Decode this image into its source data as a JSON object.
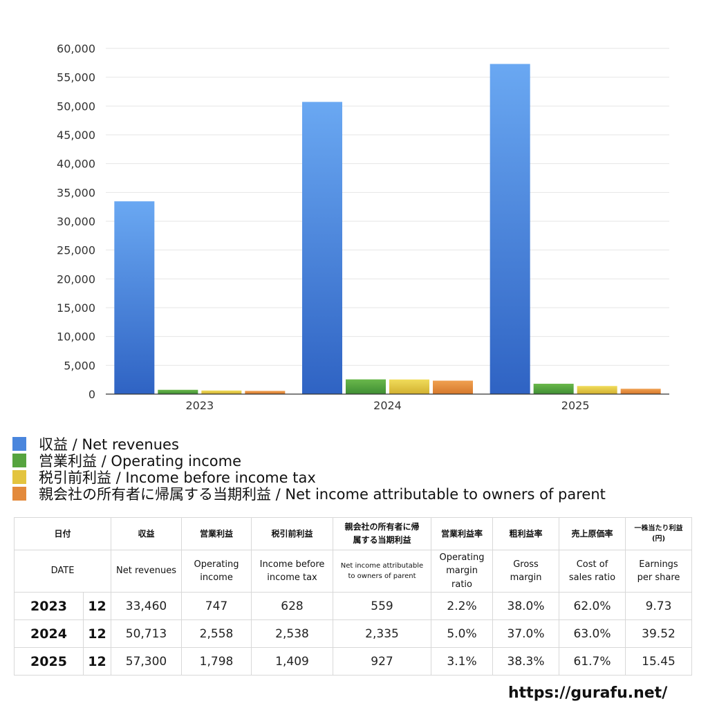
{
  "chart_data": {
    "type": "bar",
    "categories": [
      "2023",
      "2024",
      "2025"
    ],
    "series": [
      {
        "name": "収益 / Net revenues",
        "values": [
          33460,
          50713,
          57300
        ]
      },
      {
        "name": "営業利益 / Operating income",
        "values": [
          747,
          2558,
          1798
        ]
      },
      {
        "name": "税引前利益 / Income before income tax",
        "values": [
          628,
          2538,
          1409
        ]
      },
      {
        "name": "親会社の所有者に帰属する当期利益 / Net income attributable to owners of parent",
        "values": [
          559,
          2335,
          927
        ]
      }
    ],
    "ylim": [
      0,
      60000
    ],
    "yticks": [
      0,
      5000,
      10000,
      15000,
      20000,
      25000,
      30000,
      35000,
      40000,
      45000,
      50000,
      55000,
      60000
    ],
    "ytick_labels": [
      "0",
      "5,000",
      "10,000",
      "15,000",
      "20,000",
      "25,000",
      "30,000",
      "35,000",
      "40,000",
      "45,000",
      "50,000",
      "55,000",
      "60,000"
    ],
    "grid": true,
    "legend_position": "bottom",
    "colors": [
      {
        "light": "#6aa8f2",
        "dark": "#2f63c3"
      },
      {
        "light": "#6ab84b",
        "dark": "#3f8e34"
      },
      {
        "light": "#f0dc5a",
        "dark": "#d2b030"
      },
      {
        "light": "#f0a050",
        "dark": "#d6782c"
      }
    ]
  },
  "legend": {
    "items": [
      {
        "label": "収益 / Net revenues",
        "color": "#4a86dd"
      },
      {
        "label": "営業利益 / Operating income",
        "color": "#56a43f"
      },
      {
        "label": "税引前利益 / Income before income tax",
        "color": "#e3c43f"
      },
      {
        "label": "親会社の所有者に帰属する当期利益 / Net income attributable to owners of parent",
        "color": "#e38a3c"
      }
    ]
  },
  "table": {
    "header_jp": {
      "date": "日付",
      "revenue": "収益",
      "op_income": "営業利益",
      "pretax": "税引前利益",
      "net_income": "親会社の所有者に帰属する当期利益",
      "op_margin": "営業利益率",
      "gross_margin": "粗利益率",
      "cost_ratio": "売上原価率",
      "eps": "一株当たり利益 (円)"
    },
    "header_en": {
      "date": "DATE",
      "revenue": "Net revenues",
      "op_income": "Operating income",
      "pretax": "Income before income tax",
      "net_income": "Net income attributable to owners of parent",
      "op_margin": "Operating margin ratio",
      "gross_margin": "Gross margin",
      "cost_ratio": "Cost of sales ratio",
      "eps": "Earnings per share"
    },
    "rows": [
      {
        "year": "2023",
        "month": "12",
        "revenue": "33,460",
        "op_income": "747",
        "pretax": "628",
        "net_income": "559",
        "op_margin": "2.2%",
        "gross_margin": "38.0%",
        "cost_ratio": "62.0%",
        "eps": "9.73"
      },
      {
        "year": "2024",
        "month": "12",
        "revenue": "50,713",
        "op_income": "2,558",
        "pretax": "2,538",
        "net_income": "2,335",
        "op_margin": "5.0%",
        "gross_margin": "37.0%",
        "cost_ratio": "63.0%",
        "eps": "39.52"
      },
      {
        "year": "2025",
        "month": "12",
        "revenue": "57,300",
        "op_income": "1,798",
        "pretax": "1,409",
        "net_income": "927",
        "op_margin": "3.1%",
        "gross_margin": "38.3%",
        "cost_ratio": "61.7%",
        "eps": "15.45"
      }
    ]
  },
  "footer": {
    "url": "https://gurafu.net/"
  }
}
